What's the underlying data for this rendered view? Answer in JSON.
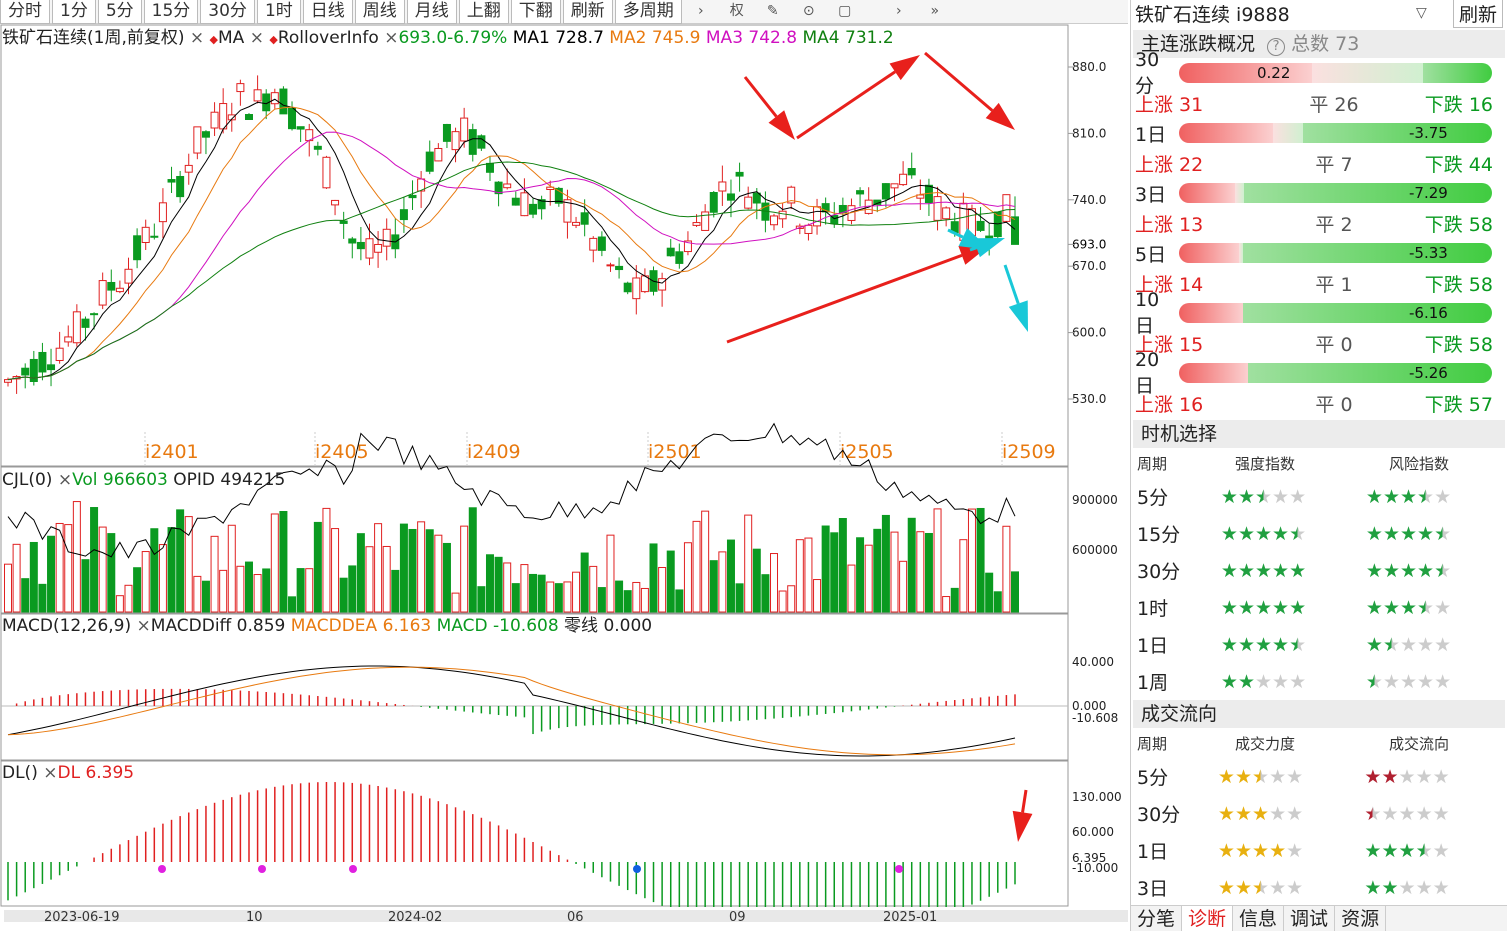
{
  "toolbar": {
    "buttons": [
      "分时",
      "1分",
      "5分",
      "15分",
      "30分",
      "1时",
      "日线",
      "周线",
      "月线",
      "上翻",
      "下翻",
      "刷新",
      "多周期"
    ],
    "icons": [
      "chevron-right-icon",
      "fuquan-icon",
      "pen-icon",
      "download-icon",
      "window-icon",
      "chevron-right-icon",
      "double-chevron-right-icon"
    ],
    "quan_label": "权"
  },
  "main_legend": {
    "title": "铁矿石连续(1周,前复权)",
    "ma_label": "MA",
    "rollover": "RolloverInfo",
    "change": "693.0-6.79%",
    "ma1": "MA1 728.7",
    "ma2": "MA2 745.9",
    "ma3": "MA3 742.8",
    "ma4": "MA4 731.2",
    "close_marker": "×",
    "diamond": "◆"
  },
  "price_axis": [
    "880.0",
    "810.0",
    "740.0",
    "693.0",
    "670.0",
    "600.0",
    "530.0"
  ],
  "contract_labels": [
    "i2401",
    "i2405",
    "i2409",
    "i2501",
    "i2505",
    "i2509"
  ],
  "vol_legend": {
    "name": "CJL(0)",
    "vol": "Vol 966603",
    "opid": "OPID 494215"
  },
  "vol_axis": [
    "900000",
    "600000"
  ],
  "macd_legend": {
    "name": "MACD(12,26,9)",
    "diff": "MACDDiff 0.859",
    "dea": "MACDDEA 6.163",
    "macd": "MACD -10.608",
    "zero": "零线 0.000"
  },
  "macd_axis": [
    "40.000",
    "0.000",
    "-10.608"
  ],
  "dl_legend": {
    "name": "DL()",
    "dl": "DL 6.395"
  },
  "dl_axis": [
    "130.000",
    "60.000",
    "6.395",
    "-10.000"
  ],
  "date_axis": [
    "2023-06-19",
    "10",
    "2024-02",
    "06",
    "09",
    "2025-01"
  ],
  "colors": {
    "up": "#e02020",
    "down": "#0a9a20",
    "ma1": "#000000",
    "ma2": "#e87a10",
    "ma3": "#d010c0",
    "ma4": "#108010",
    "arrow_red": "#e8201c",
    "arrow_cyan": "#19c8d8"
  },
  "sidebar": {
    "title": "铁矿石连续 i9888",
    "refresh": "刷新",
    "overview_title": "主连涨跌概况",
    "total": "总数 73",
    "periods": [
      {
        "label": "30分",
        "value": "0.22",
        "up": "上涨 31",
        "flat": "平 26",
        "down": "下跌 16"
      },
      {
        "label": "1日",
        "value": "-3.75",
        "up": "上涨 22",
        "flat": "平 7",
        "down": "下跌 44"
      },
      {
        "label": "3日",
        "value": "-7.29",
        "up": "上涨 13",
        "flat": "平 2",
        "down": "下跌 58"
      },
      {
        "label": "5日",
        "value": "-5.33",
        "up": "上涨 14",
        "flat": "平 1",
        "down": "下跌 58"
      },
      {
        "label": "10日",
        "value": "-6.16",
        "up": "上涨 15",
        "flat": "平 0",
        "down": "下跌 58"
      },
      {
        "label": "20日",
        "value": "-5.26",
        "up": "上涨 16",
        "flat": "平 0",
        "down": "下跌 57"
      }
    ],
    "timing_title": "时机选择",
    "timing_headers": [
      "周期",
      "强度指数",
      "风险指数"
    ],
    "timing_rows": [
      {
        "period": "5分",
        "strength": 2.5,
        "risk": 3.5
      },
      {
        "period": "15分",
        "strength": 4.5,
        "risk": 4.5
      },
      {
        "period": "30分",
        "strength": 5,
        "risk": 4.5
      },
      {
        "period": "1时",
        "strength": 5,
        "risk": 3.5
      },
      {
        "period": "1日",
        "strength": 4.5,
        "risk": 1.5
      },
      {
        "period": "1周",
        "strength": 2,
        "risk": 0.5
      }
    ],
    "flow_title": "成交流向",
    "flow_headers": [
      "周期",
      "成交力度",
      "成交流向"
    ],
    "flow_rows": [
      {
        "period": "5分",
        "force": 2.5,
        "flow": 2
      },
      {
        "period": "30分",
        "force": 3,
        "flow": 0.5
      },
      {
        "period": "1日",
        "force": 4,
        "flow": 3.5
      },
      {
        "period": "3日",
        "force": 2.5,
        "flow": 2
      }
    ],
    "tabs": [
      "分笔",
      "诊断",
      "信息",
      "调试",
      "资源"
    ]
  }
}
